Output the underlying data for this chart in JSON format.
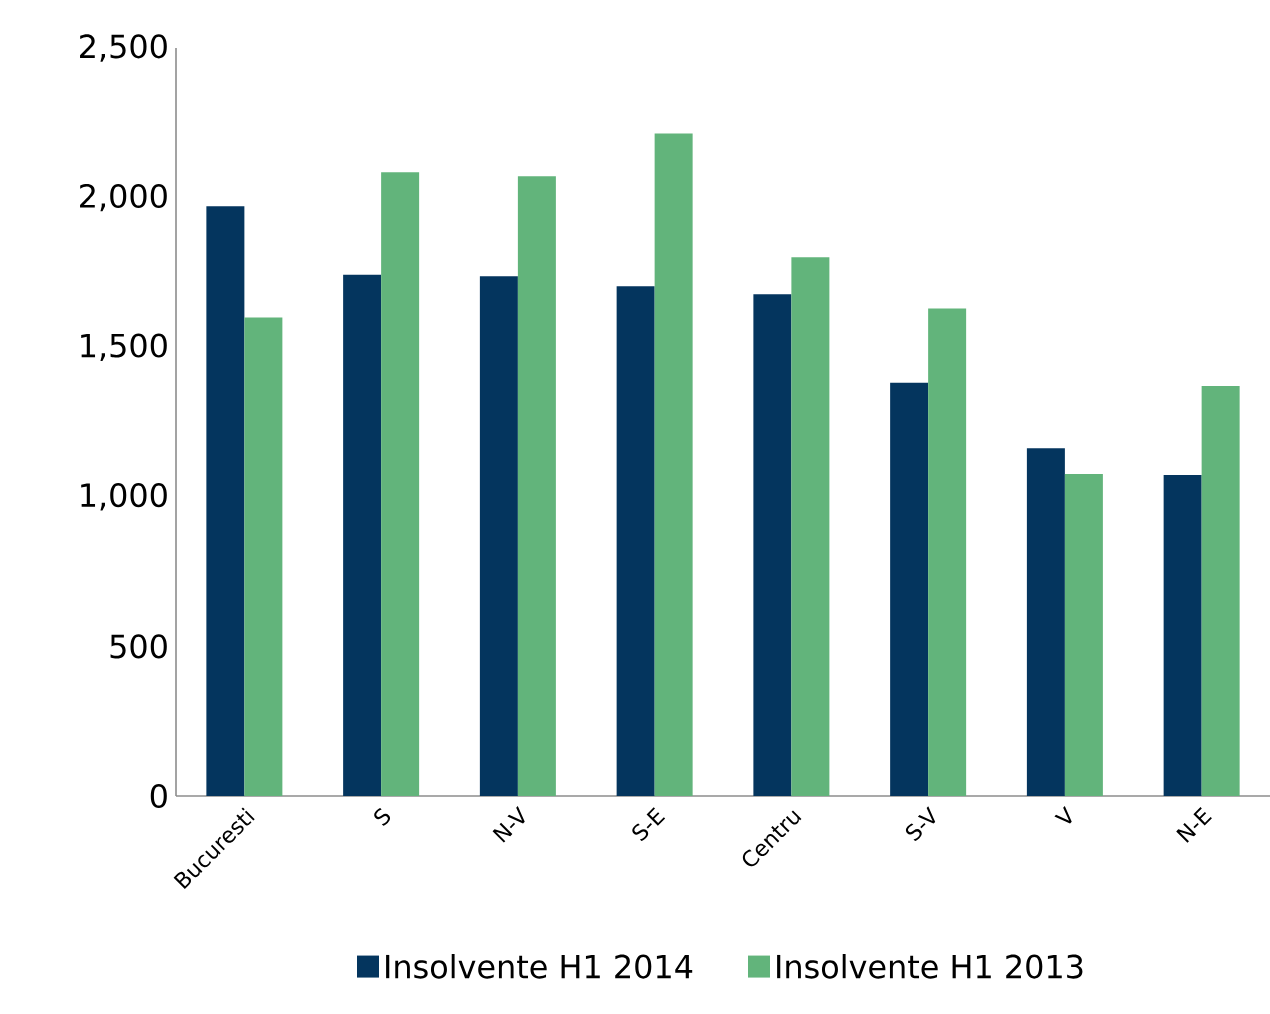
{
  "chart_data": {
    "type": "bar",
    "categories": [
      "Bucuresti",
      "S",
      "N-V",
      "S-E",
      "Centru",
      "S-V",
      "V",
      "N-E"
    ],
    "series": [
      {
        "name": "Insolvente H1 2014",
        "color": "#04355e",
        "values": [
          1971,
          1742,
          1737,
          1704,
          1677,
          1381,
          1162,
          1073
        ]
      },
      {
        "name": "Insolvente H1 2013",
        "color": "#62b47b",
        "values": [
          1599,
          2085,
          2071,
          2214,
          1801,
          1629,
          1076,
          1370
        ]
      }
    ],
    "ylim": [
      0,
      2500
    ],
    "yticks": [
      0,
      500,
      {
        "value": 1000,
        "label": "1,000"
      },
      {
        "value": 1500,
        "label": "1,500"
      },
      {
        "value": 2000,
        "label": "2,000"
      },
      {
        "value": 2500,
        "label": "2,500"
      }
    ],
    "grid": false,
    "legend": "bottom"
  }
}
